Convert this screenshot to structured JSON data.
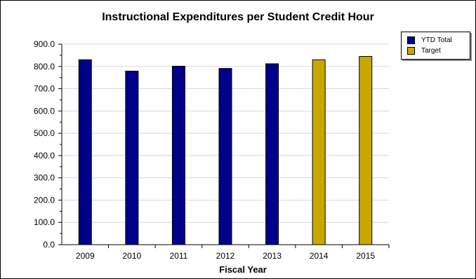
{
  "chart_data": {
    "type": "bar",
    "title": "Instructional Expenditures per Student Credit Hour",
    "xlabel": "Fiscal Year",
    "ylabel": "",
    "categories": [
      "2009",
      "2010",
      "2011",
      "2012",
      "2013",
      "2014",
      "2015"
    ],
    "series": [
      {
        "name": "YTD Total",
        "color": "#00008B",
        "values": [
          830,
          779,
          801,
          791,
          812,
          null,
          null
        ]
      },
      {
        "name": "Target",
        "color": "#C8A800",
        "values": [
          null,
          null,
          null,
          null,
          null,
          830,
          845
        ]
      }
    ],
    "ylim": [
      0,
      900
    ],
    "yticks": [
      "0.0",
      "100.0",
      "200.0",
      "300.0",
      "400.0",
      "500.0",
      "600.0",
      "700.0",
      "800.0",
      "900.0"
    ],
    "grid": true,
    "legend_position": "top-right"
  }
}
